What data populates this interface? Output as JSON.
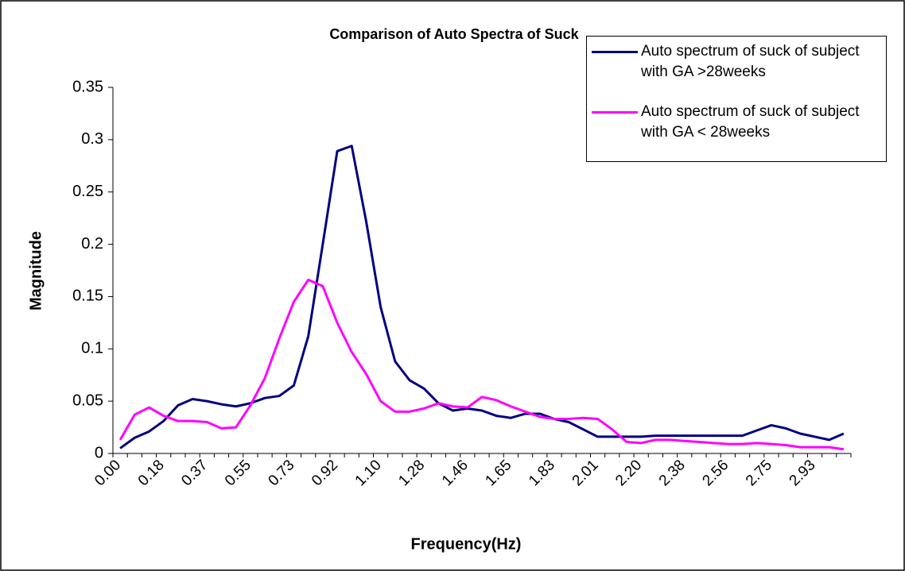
{
  "chart_data": {
    "type": "line",
    "title": "Comparison of Auto Spectra of Suck",
    "x_label": "Frequency(Hz)",
    "y_label": "Magnitude",
    "categories": [
      "0.00",
      null,
      null,
      "0.18",
      null,
      null,
      "0.37",
      null,
      null,
      "0.55",
      null,
      null,
      "0.73",
      null,
      null,
      "0.92",
      null,
      null,
      "1.10",
      null,
      null,
      "1.28",
      null,
      null,
      "1.46",
      null,
      null,
      "1.65",
      null,
      null,
      "1.83",
      null,
      null,
      "2.01",
      null,
      null,
      "2.20",
      null,
      null,
      "2.38",
      null,
      null,
      "2.56",
      null,
      null,
      "2.75",
      null,
      null,
      "2.93",
      null,
      null
    ],
    "series": [
      {
        "name": "Auto spectrum of suck of subject with GA >28weeks",
        "color": "#000080",
        "values": [
          0.005,
          0.015,
          0.021,
          0.031,
          0.046,
          0.052,
          0.05,
          0.047,
          0.045,
          0.048,
          0.053,
          0.055,
          0.065,
          0.112,
          0.2,
          0.289,
          0.294,
          0.222,
          0.14,
          0.088,
          0.07,
          0.062,
          0.048,
          0.041,
          0.043,
          0.041,
          0.036,
          0.034,
          0.038,
          0.038,
          0.033,
          0.03,
          0.023,
          0.016,
          0.016,
          0.016,
          0.016,
          0.017,
          0.017,
          0.017,
          0.017,
          0.017,
          0.017,
          0.017,
          0.022,
          0.027,
          0.024,
          0.019,
          0.016,
          0.013,
          0.019
        ]
      },
      {
        "name": "Auto spectrum of suck of subject with GA < 28weeks",
        "color": "#ff00ff",
        "values": [
          0.013,
          0.037,
          0.044,
          0.036,
          0.031,
          0.031,
          0.03,
          0.024,
          0.025,
          0.046,
          0.072,
          0.11,
          0.145,
          0.166,
          0.16,
          0.125,
          0.097,
          0.076,
          0.05,
          0.04,
          0.04,
          0.043,
          0.048,
          0.045,
          0.044,
          0.054,
          0.051,
          0.045,
          0.04,
          0.035,
          0.033,
          0.033,
          0.034,
          0.033,
          0.023,
          0.011,
          0.01,
          0.013,
          0.013,
          0.012,
          0.011,
          0.01,
          0.009,
          0.009,
          0.01,
          0.009,
          0.008,
          0.006,
          0.006,
          0.006,
          0.004
        ]
      }
    ],
    "ylim": [
      0,
      0.35
    ],
    "yticks": [
      0,
      0.05,
      0.1,
      0.15,
      0.2,
      0.25,
      0.3,
      0.35
    ],
    "legend": "top-right"
  }
}
